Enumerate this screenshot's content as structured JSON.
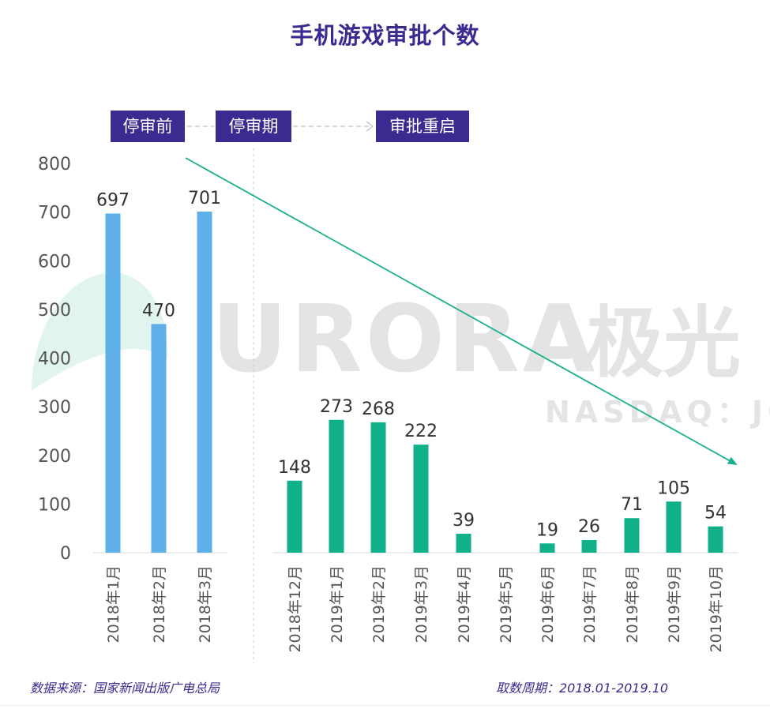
{
  "title": "手机游戏审批个数",
  "phases": [
    "停审前",
    "停审期",
    "审批重启"
  ],
  "footer": {
    "source": "数据来源：国家新闻出版广电总局",
    "period": "取数周期：2018.01-2019.10"
  },
  "watermark": {
    "brand": "URORA",
    "brand_cn": "极光",
    "ticker": "NASDAQ：JG"
  },
  "colors": {
    "title": "#3b2a8f",
    "phase_box": "#3b2a8f",
    "before_bars": "#5fb0e8",
    "after_bars": "#0fb08a",
    "trend_arrow": "#19b08e"
  },
  "chart_data": {
    "type": "bar",
    "ylim": [
      0,
      800
    ],
    "yticks": [
      0,
      100,
      200,
      300,
      400,
      500,
      600,
      700,
      800
    ],
    "categories": [
      "2018年1月",
      "2018年2月",
      "2018年3月",
      "2018年12月",
      "2019年1月",
      "2019年2月",
      "2019年3月",
      "2019年4月",
      "2019年5月",
      "2019年6月",
      "2019年7月",
      "2019年8月",
      "2019年9月",
      "2019年10月"
    ],
    "values": [
      697,
      470,
      701,
      148,
      273,
      268,
      222,
      39,
      null,
      19,
      26,
      71,
      105,
      54
    ],
    "groups": [
      {
        "phase": "停审前",
        "start": 0,
        "end": 2,
        "color": "#5fb0e8"
      },
      {
        "phase": "审批重启",
        "start": 3,
        "end": 13,
        "color": "#0fb08a"
      }
    ],
    "grid": false,
    "legend": "none",
    "annotations": [
      "downward trend arrow"
    ]
  }
}
